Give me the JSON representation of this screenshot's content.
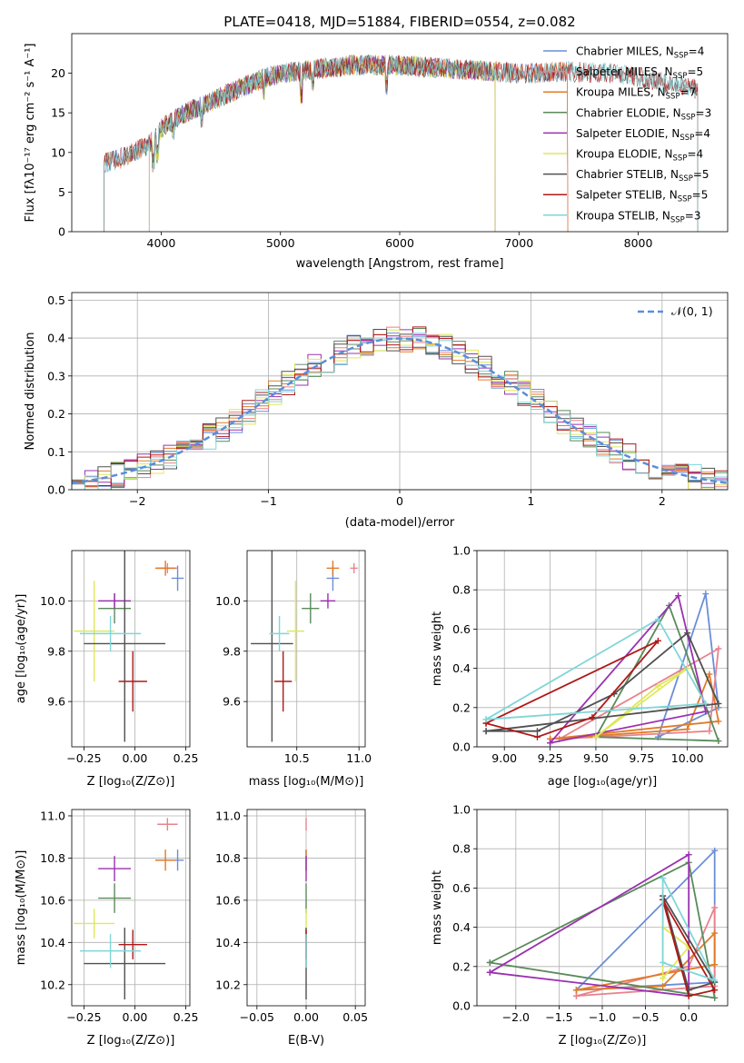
{
  "figure": {
    "title": "PLATE=0418, MJD=51884, FIBERID=0554, z=0.082"
  },
  "colors": {
    "Chabrier MILES": "#6a8fd8",
    "Salpeter MILES": "#e8828d",
    "Kroupa MILES": "#e07b2a",
    "Chabrier ELODIE": "#5a8a5a",
    "Salpeter ELODIE": "#9b30b0",
    "Kroupa ELODIE": "#dfe85a",
    "Chabrier STELIB": "#505050",
    "Salpeter STELIB": "#b01818",
    "Kroupa STELIB": "#7fd6d8"
  },
  "chart_data": [
    {
      "type": "line",
      "panel": "spectrum",
      "xlabel": "wavelength [Angstrom, rest frame]",
      "ylabel": "Flux [fλ10⁻¹⁷ erg cm⁻² s⁻¹ A⁻¹]",
      "xlim": [
        3250,
        8750
      ],
      "ylim": [
        0,
        25
      ],
      "xticks": [
        "4000",
        "5000",
        "6000",
        "7000",
        "8000"
      ],
      "yticks": [
        "0",
        "5",
        "10",
        "15",
        "20"
      ],
      "grid": false,
      "legend_position": "top-right",
      "legend": [
        {
          "name": "Chabrier MILES",
          "nssp": "4"
        },
        {
          "name": "Salpeter MILES",
          "nssp": "5"
        },
        {
          "name": "Kroupa MILES",
          "nssp": "7"
        },
        {
          "name": "Chabrier ELODIE",
          "nssp": "3"
        },
        {
          "name": "Salpeter ELODIE",
          "nssp": "4"
        },
        {
          "name": "Kroupa ELODIE",
          "nssp": "4"
        },
        {
          "name": "Chabrier STELIB",
          "nssp": "5"
        },
        {
          "name": "Salpeter STELIB",
          "nssp": "5"
        },
        {
          "name": "Kroupa STELIB",
          "nssp": "3"
        }
      ],
      "nssp_prefix": "N",
      "nssp_sub": "SSP",
      "continuum_x": [
        3500,
        3700,
        3900,
        4000,
        4200,
        4500,
        4800,
        5000,
        5300,
        5600,
        6000,
        6500,
        7000,
        7400,
        7800,
        8000,
        8300,
        8500
      ],
      "continuum_y": [
        8.5,
        9.5,
        11.0,
        13.0,
        15.0,
        17.0,
        19.0,
        20.0,
        20.5,
        21.0,
        21.0,
        20.5,
        20.0,
        20.2,
        20.0,
        19.5,
        18.5,
        18.0
      ],
      "series_extent": {
        "Chabrier MILES": [
          3520,
          7410
        ],
        "Salpeter MILES": [
          3520,
          7410
        ],
        "Kroupa MILES": [
          3520,
          7410
        ],
        "Chabrier ELODIE": [
          3900,
          6800
        ],
        "Salpeter ELODIE": [
          3900,
          6800
        ],
        "Kroupa ELODIE": [
          3900,
          6800
        ],
        "Chabrier STELIB": [
          3520,
          8500
        ],
        "Salpeter STELIB": [
          3520,
          8500
        ],
        "Kroupa STELIB": [
          3520,
          8500
        ]
      }
    },
    {
      "type": "line",
      "panel": "residuals",
      "xlabel": "(data-model)/error",
      "ylabel": "Normed distribution",
      "xlim": [
        -2.5,
        2.5
      ],
      "ylim": [
        0,
        0.52
      ],
      "xticks": [
        "−2",
        "−1",
        "0",
        "1",
        "2"
      ],
      "yticks": [
        "0.0",
        "0.1",
        "0.2",
        "0.3",
        "0.4",
        "0.5"
      ],
      "grid": true,
      "legend_position": "top-right",
      "gaussian_label": "𝒩(0, 1)",
      "bin_width": 0.1
    },
    {
      "type": "scatter",
      "panel": "age-vs-Z",
      "xlabel": "Z [log₁₀(Z/Z⊙)]",
      "ylabel": "age  [log₁₀(age/yr)]",
      "xlim": [
        -0.31,
        0.27
      ],
      "ylim": [
        9.42,
        10.2
      ],
      "xticks": [
        "−0.25",
        "0.00",
        "0.25"
      ],
      "yticks": [
        "9.6",
        "9.8",
        "10.0"
      ],
      "grid": true,
      "points": [
        {
          "series": "Chabrier MILES",
          "x": 0.21,
          "y": 10.09,
          "xerr": 0.03,
          "yerr": 0.05
        },
        {
          "series": "Salpeter MILES",
          "x": 0.16,
          "y": 10.13,
          "xerr": 0.05,
          "yerr": 0.02
        },
        {
          "series": "Kroupa MILES",
          "x": 0.15,
          "y": 10.13,
          "xerr": 0.05,
          "yerr": 0.03
        },
        {
          "series": "Chabrier ELODIE",
          "x": -0.1,
          "y": 9.97,
          "xerr": 0.08,
          "yerr": 0.06
        },
        {
          "series": "Salpeter ELODIE",
          "x": -0.1,
          "y": 10.0,
          "xerr": 0.08,
          "yerr": 0.03
        },
        {
          "series": "Kroupa ELODIE",
          "x": -0.2,
          "y": 9.88,
          "xerr": 0.1,
          "yerr": 0.2
        },
        {
          "series": "Chabrier STELIB",
          "x": -0.05,
          "y": 9.83,
          "xerr": 0.2,
          "yerr": 0.39
        },
        {
          "series": "Salpeter STELIB",
          "x": -0.01,
          "y": 9.68,
          "xerr": 0.07,
          "yerr": 0.12
        },
        {
          "series": "Kroupa STELIB",
          "x": -0.12,
          "y": 9.87,
          "xerr": 0.15,
          "yerr": 0.07
        }
      ]
    },
    {
      "type": "scatter",
      "panel": "age-vs-mass",
      "xlabel": "mass [log₁₀(M/M⊙)]",
      "ylabel": "",
      "xlim": [
        10.1,
        11.05
      ],
      "ylim": [
        9.42,
        10.2
      ],
      "xticks": [
        "10.5",
        "11.0"
      ],
      "yticks": [
        "9.6",
        "9.8",
        "10.0"
      ],
      "grid": true,
      "points": [
        {
          "series": "Chabrier MILES",
          "x": 10.79,
          "y": 10.09,
          "xerr": 0.05,
          "yerr": 0.05
        },
        {
          "series": "Salpeter MILES",
          "x": 10.96,
          "y": 10.13,
          "xerr": 0.03,
          "yerr": 0.02
        },
        {
          "series": "Kroupa MILES",
          "x": 10.79,
          "y": 10.13,
          "xerr": 0.05,
          "yerr": 0.03
        },
        {
          "series": "Chabrier ELODIE",
          "x": 10.61,
          "y": 9.97,
          "xerr": 0.07,
          "yerr": 0.06
        },
        {
          "series": "Salpeter ELODIE",
          "x": 10.75,
          "y": 10.0,
          "xerr": 0.06,
          "yerr": 0.03
        },
        {
          "series": "Kroupa ELODIE",
          "x": 10.49,
          "y": 9.88,
          "xerr": 0.07,
          "yerr": 0.2
        },
        {
          "series": "Chabrier STELIB",
          "x": 10.3,
          "y": 9.83,
          "xerr": 0.17,
          "yerr": 0.39
        },
        {
          "series": "Salpeter STELIB",
          "x": 10.39,
          "y": 9.68,
          "xerr": 0.07,
          "yerr": 0.12
        },
        {
          "series": "Kroupa STELIB",
          "x": 10.36,
          "y": 9.87,
          "xerr": 0.08,
          "yerr": 0.07
        }
      ]
    },
    {
      "type": "line",
      "panel": "weight-vs-age",
      "xlabel": "age  [log₁₀(age/yr)]",
      "ylabel": "mass weight",
      "xlim": [
        8.85,
        10.22
      ],
      "ylim": [
        0,
        1.0
      ],
      "xticks": [
        "9.00",
        "9.25",
        "9.50",
        "9.75",
        "10.00"
      ],
      "yticks": [
        "0.0",
        "0.2",
        "0.4",
        "0.6",
        "0.8",
        "1.0"
      ],
      "grid": true,
      "series": [
        {
          "name": "Chabrier MILES",
          "x": [
            9.84,
            10.1,
            10.17,
            9.84
          ],
          "y": [
            0.05,
            0.78,
            0.2,
            0.05
          ]
        },
        {
          "name": "Salpeter MILES",
          "x": [
            9.3,
            10.12,
            10.17,
            9.3
          ],
          "y": [
            0.04,
            0.08,
            0.5,
            0.04
          ]
        },
        {
          "name": "Kroupa MILES",
          "x": [
            9.25,
            10.0,
            10.12,
            10.17,
            9.25
          ],
          "y": [
            0.04,
            0.09,
            0.37,
            0.13,
            0.04
          ]
        },
        {
          "name": "Chabrier ELODIE",
          "x": [
            9.5,
            9.9,
            10.17,
            9.5
          ],
          "y": [
            0.05,
            0.72,
            0.03,
            0.05
          ]
        },
        {
          "name": "Salpeter ELODIE",
          "x": [
            9.25,
            9.95,
            10.1,
            9.25
          ],
          "y": [
            0.02,
            0.77,
            0.18,
            0.02
          ]
        },
        {
          "name": "Kroupa ELODIE",
          "x": [
            9.5,
            9.84,
            10.0,
            9.5
          ],
          "y": [
            0.05,
            0.31,
            0.4,
            0.05
          ]
        },
        {
          "name": "Chabrier STELIB",
          "x": [
            8.9,
            9.18,
            9.6,
            10.0,
            10.17,
            8.9
          ],
          "y": [
            0.08,
            0.08,
            0.27,
            0.58,
            0.22,
            0.08
          ]
        },
        {
          "name": "Salpeter STELIB",
          "x": [
            8.9,
            9.18,
            9.48,
            9.84,
            8.9
          ],
          "y": [
            0.12,
            0.05,
            0.15,
            0.54,
            0.12
          ]
        },
        {
          "name": "Kroupa STELIB",
          "x": [
            8.9,
            9.84,
            10.1,
            8.9
          ],
          "y": [
            0.14,
            0.65,
            0.22,
            0.14
          ]
        }
      ]
    },
    {
      "type": "scatter",
      "panel": "mass-vs-Z",
      "xlabel": "Z [log₁₀(Z/Z⊙)]",
      "ylabel": "mass [log₁₀(M/M⊙)]",
      "xlim": [
        -0.31,
        0.27
      ],
      "ylim": [
        10.1,
        11.03
      ],
      "xticks": [
        "−0.25",
        "0.00",
        "0.25"
      ],
      "yticks": [
        "10.2",
        "10.4",
        "10.6",
        "10.8",
        "11.0"
      ],
      "grid": true,
      "points": [
        {
          "series": "Chabrier MILES",
          "x": 0.21,
          "y": 10.79,
          "xerr": 0.03,
          "yerr": 0.05
        },
        {
          "series": "Salpeter MILES",
          "x": 0.16,
          "y": 10.96,
          "xerr": 0.05,
          "yerr": 0.03
        },
        {
          "series": "Kroupa MILES",
          "x": 0.15,
          "y": 10.79,
          "xerr": 0.05,
          "yerr": 0.05
        },
        {
          "series": "Chabrier ELODIE",
          "x": -0.1,
          "y": 10.61,
          "xerr": 0.08,
          "yerr": 0.07
        },
        {
          "series": "Salpeter ELODIE",
          "x": -0.1,
          "y": 10.75,
          "xerr": 0.08,
          "yerr": 0.06
        },
        {
          "series": "Kroupa ELODIE",
          "x": -0.2,
          "y": 10.49,
          "xerr": 0.1,
          "yerr": 0.07
        },
        {
          "series": "Chabrier STELIB",
          "x": -0.05,
          "y": 10.3,
          "xerr": 0.2,
          "yerr": 0.17
        },
        {
          "series": "Salpeter STELIB",
          "x": -0.01,
          "y": 10.39,
          "xerr": 0.07,
          "yerr": 0.07
        },
        {
          "series": "Kroupa STELIB",
          "x": -0.12,
          "y": 10.36,
          "xerr": 0.15,
          "yerr": 0.08
        }
      ]
    },
    {
      "type": "scatter",
      "panel": "mass-vs-EBV",
      "xlabel": "E(B-V)",
      "ylabel": "",
      "xlim": [
        -0.06,
        0.06
      ],
      "ylim": [
        10.1,
        11.03
      ],
      "xticks": [
        "−0.05",
        "0.00",
        "0.05"
      ],
      "yticks": [
        "10.2",
        "10.4",
        "10.6",
        "10.8",
        "11.0"
      ],
      "grid": true,
      "points": [
        {
          "series": "Chabrier MILES",
          "x": 0.0,
          "y": 10.79,
          "xerr": 0.0,
          "yerr": 0.05
        },
        {
          "series": "Salpeter MILES",
          "x": 0.0,
          "y": 10.96,
          "xerr": 0.0,
          "yerr": 0.03
        },
        {
          "series": "Kroupa MILES",
          "x": 0.0,
          "y": 10.79,
          "xerr": 0.0,
          "yerr": 0.05
        },
        {
          "series": "Chabrier ELODIE",
          "x": 0.0,
          "y": 10.61,
          "xerr": 0.0,
          "yerr": 0.07
        },
        {
          "series": "Salpeter ELODIE",
          "x": 0.0,
          "y": 10.75,
          "xerr": 0.0,
          "yerr": 0.06
        },
        {
          "series": "Kroupa ELODIE",
          "x": 0.0,
          "y": 10.49,
          "xerr": 0.0,
          "yerr": 0.07
        },
        {
          "series": "Chabrier STELIB",
          "x": 0.0,
          "y": 10.3,
          "xerr": 0.0,
          "yerr": 0.17
        },
        {
          "series": "Salpeter STELIB",
          "x": 0.0,
          "y": 10.39,
          "xerr": 0.0,
          "yerr": 0.07
        },
        {
          "series": "Kroupa STELIB",
          "x": 0.0,
          "y": 10.36,
          "xerr": 0.0,
          "yerr": 0.08
        }
      ]
    },
    {
      "type": "line",
      "panel": "weight-vs-Z",
      "xlabel": "Z [log₁₀(Z/Z⊙)]",
      "ylabel": "mass weight",
      "xlim": [
        -2.45,
        0.45
      ],
      "ylim": [
        0,
        1.0
      ],
      "xticks": [
        "−2.0",
        "−1.5",
        "−1.0",
        "−0.5",
        "0.0"
      ],
      "yticks": [
        "0.0",
        "0.2",
        "0.4",
        "0.6",
        "0.8",
        "1.0"
      ],
      "grid": true,
      "series": [
        {
          "name": "Chabrier MILES",
          "x": [
            -1.3,
            0.3,
            0.3,
            -1.3
          ],
          "y": [
            0.08,
            0.79,
            0.12,
            0.08
          ]
        },
        {
          "name": "Salpeter MILES",
          "x": [
            -1.3,
            0.0,
            0.3,
            0.3,
            -1.3
          ],
          "y": [
            0.05,
            0.2,
            0.5,
            0.1,
            0.05
          ]
        },
        {
          "name": "Kroupa MILES",
          "x": [
            -1.3,
            -0.3,
            0.3,
            0.3,
            -1.3
          ],
          "y": [
            0.08,
            0.1,
            0.37,
            0.21,
            0.08
          ]
        },
        {
          "name": "Chabrier ELODIE",
          "x": [
            -2.3,
            0.0,
            0.3,
            -2.3
          ],
          "y": [
            0.22,
            0.73,
            0.04,
            0.22
          ]
        },
        {
          "name": "Salpeter ELODIE",
          "x": [
            -2.3,
            0.0,
            0.0,
            -2.3
          ],
          "y": [
            0.17,
            0.77,
            0.05,
            0.17
          ]
        },
        {
          "name": "Kroupa ELODIE",
          "x": [
            -0.3,
            -0.3,
            0.0,
            -0.3
          ],
          "y": [
            0.14,
            0.4,
            0.3,
            0.14
          ]
        },
        {
          "name": "Chabrier STELIB",
          "x": [
            -0.3,
            0.0,
            0.3,
            -0.3
          ],
          "y": [
            0.56,
            0.08,
            0.12,
            0.56
          ]
        },
        {
          "name": "Salpeter STELIB",
          "x": [
            -0.3,
            0.0,
            0.3,
            -0.3
          ],
          "y": [
            0.54,
            0.05,
            0.08,
            0.54
          ]
        },
        {
          "name": "Kroupa STELIB",
          "x": [
            -0.3,
            -0.3,
            0.3,
            -0.3
          ],
          "y": [
            0.65,
            0.22,
            0.13,
            0.65
          ]
        }
      ]
    }
  ]
}
